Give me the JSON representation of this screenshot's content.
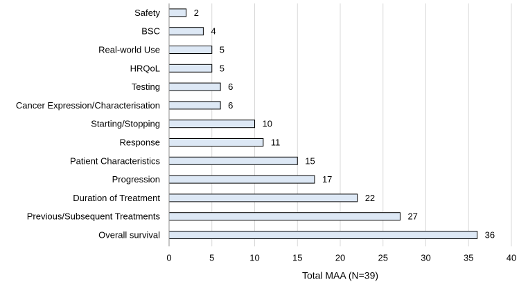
{
  "chart_data": {
    "type": "bar",
    "orientation": "horizontal",
    "categories": [
      "Safety",
      "BSC",
      "Real-world Use",
      "HRQoL",
      "Testing",
      "Cancer Expression/Characterisation",
      "Starting/Stopping",
      "Response",
      "Patient Characteristics",
      "Progression",
      "Duration of Treatment",
      "Previous/Subsequent Treatments",
      "Overall survival"
    ],
    "values": [
      2,
      4,
      5,
      5,
      6,
      6,
      10,
      11,
      15,
      17,
      22,
      27,
      36
    ],
    "data_labels": [
      "2",
      "4",
      "5",
      "5",
      "6",
      "6",
      "10",
      "11",
      "15",
      "17",
      "22",
      "27",
      "36"
    ],
    "xlabel": "Total MAA (N=39)",
    "ylabel": "",
    "xlim": [
      0,
      40
    ],
    "xticks": [
      0,
      5,
      10,
      15,
      20,
      25,
      30,
      35,
      40
    ],
    "xtick_labels": [
      "0",
      "5",
      "10",
      "15",
      "20",
      "25",
      "30",
      "35",
      "40"
    ],
    "grid": "vertical",
    "legend": "none",
    "colors": {
      "bar_fill": "#dde8f5",
      "bar_stroke": "#000000",
      "grid": "#d9d9d9"
    }
  }
}
